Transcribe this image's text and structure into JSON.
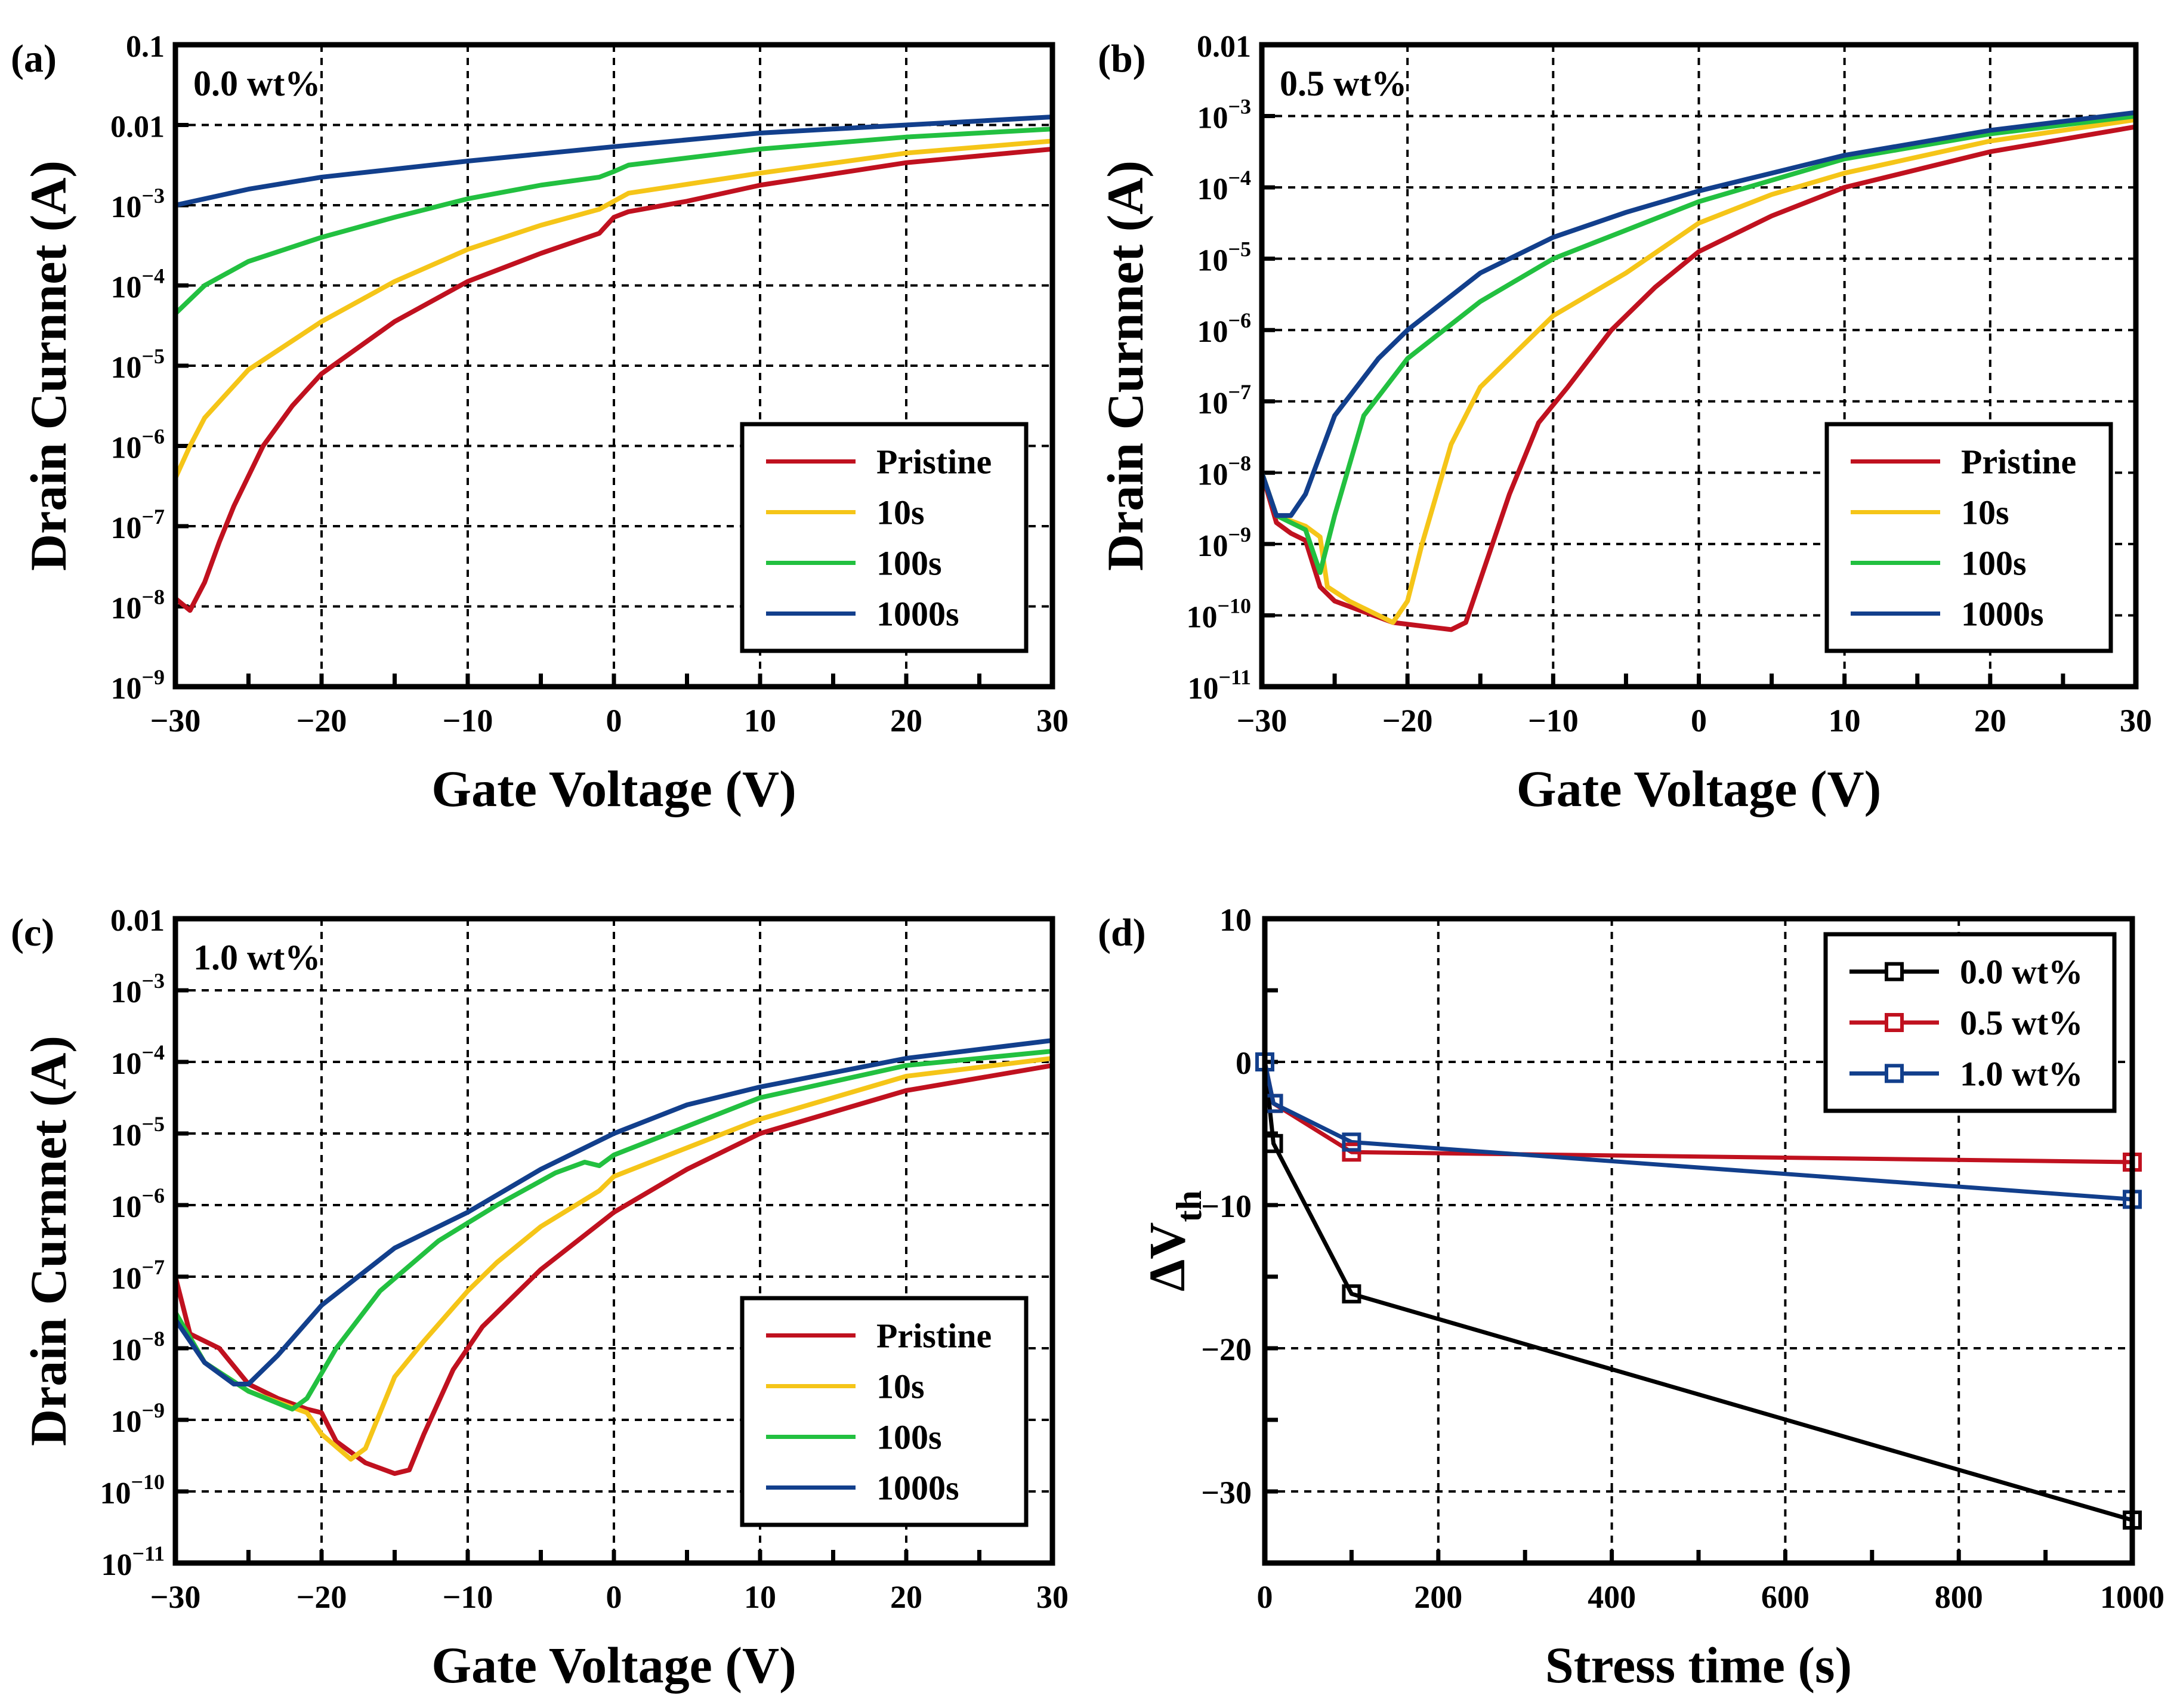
{
  "chart_data": [
    {
      "id": "a",
      "panel_label": "(a)",
      "type": "line",
      "annotation": "0.0 wt%",
      "xlabel": "Gate Voltage (V)",
      "ylabel": "Drain Curnnet (A)",
      "yscale": "log",
      "xlim": [
        -30,
        30
      ],
      "ylim_log10": [
        -9,
        -1
      ],
      "xticks": [
        "−30",
        "−20",
        "−10",
        "0",
        "10",
        "20",
        "30"
      ],
      "yticks": [
        {
          "m": "10",
          "e": "-9"
        },
        {
          "m": "10",
          "e": "-8"
        },
        {
          "m": "10",
          "e": "-7"
        },
        {
          "m": "10",
          "e": "-6"
        },
        {
          "m": "10",
          "e": "-5"
        },
        {
          "m": "10",
          "e": "-4"
        },
        {
          "m": "10",
          "e": "-3"
        },
        {
          "m": "0.01",
          "e": ""
        },
        {
          "m": "0.1",
          "e": ""
        }
      ],
      "legend": "bottom-right",
      "grid": true,
      "series": [
        {
          "name": "Pristine",
          "color": "#c0111f",
          "x_log10y": [
            [
              -30,
              -7.9
            ],
            [
              -29,
              -8.05
            ],
            [
              -28,
              -7.7
            ],
            [
              -27,
              -7.2
            ],
            [
              -26,
              -6.75
            ],
            [
              -24,
              -6.0
            ],
            [
              -22,
              -5.5
            ],
            [
              -20,
              -5.1
            ],
            [
              -15,
              -4.45
            ],
            [
              -10,
              -3.95
            ],
            [
              -5,
              -3.6
            ],
            [
              -1,
              -3.35
            ],
            [
              0,
              -3.15
            ],
            [
              1,
              -3.08
            ],
            [
              5,
              -2.95
            ],
            [
              10,
              -2.75
            ],
            [
              20,
              -2.47
            ],
            [
              30,
              -2.3
            ]
          ]
        },
        {
          "name": "10s",
          "color": "#f5c518",
          "x_log10y": [
            [
              -30,
              -6.4
            ],
            [
              -29,
              -6.0
            ],
            [
              -28,
              -5.65
            ],
            [
              -25,
              -5.05
            ],
            [
              -20,
              -4.45
            ],
            [
              -15,
              -3.95
            ],
            [
              -10,
              -3.55
            ],
            [
              -5,
              -3.25
            ],
            [
              -1,
              -3.05
            ],
            [
              0,
              -2.95
            ],
            [
              1,
              -2.85
            ],
            [
              10,
              -2.6
            ],
            [
              20,
              -2.35
            ],
            [
              30,
              -2.2
            ]
          ]
        },
        {
          "name": "100s",
          "color": "#22c040",
          "x_log10y": [
            [
              -30,
              -4.35
            ],
            [
              -28,
              -4.0
            ],
            [
              -25,
              -3.7
            ],
            [
              -20,
              -3.4
            ],
            [
              -15,
              -3.15
            ],
            [
              -10,
              -2.92
            ],
            [
              -5,
              -2.75
            ],
            [
              -1,
              -2.65
            ],
            [
              0,
              -2.58
            ],
            [
              1,
              -2.5
            ],
            [
              10,
              -2.3
            ],
            [
              20,
              -2.15
            ],
            [
              30,
              -2.05
            ]
          ]
        },
        {
          "name": "1000s",
          "color": "#123f8c",
          "x_log10y": [
            [
              -30,
              -3.0
            ],
            [
              -25,
              -2.8
            ],
            [
              -20,
              -2.65
            ],
            [
              -10,
              -2.45
            ],
            [
              0,
              -2.27
            ],
            [
              10,
              -2.1
            ],
            [
              20,
              -2.0
            ],
            [
              30,
              -1.9
            ]
          ]
        }
      ]
    },
    {
      "id": "b",
      "panel_label": "(b)",
      "type": "line",
      "annotation": "0.5 wt%",
      "xlabel": "Gate Voltage (V)",
      "ylabel": "Drain Curnnet (A)",
      "yscale": "log",
      "xlim": [
        -30,
        30
      ],
      "ylim_log10": [
        -11,
        -2
      ],
      "xticks": [
        "−30",
        "−20",
        "−10",
        "0",
        "10",
        "20",
        "30"
      ],
      "yticks": [
        {
          "m": "10",
          "e": "-11"
        },
        {
          "m": "10",
          "e": "-10"
        },
        {
          "m": "10",
          "e": "-9"
        },
        {
          "m": "10",
          "e": "-8"
        },
        {
          "m": "10",
          "e": "-7"
        },
        {
          "m": "10",
          "e": "-6"
        },
        {
          "m": "10",
          "e": "-5"
        },
        {
          "m": "10",
          "e": "-4"
        },
        {
          "m": "10",
          "e": "-3"
        },
        {
          "m": "0.01",
          "e": ""
        }
      ],
      "legend": "bottom-right",
      "grid": true,
      "series": [
        {
          "name": "Pristine",
          "color": "#c0111f",
          "x_log10y": [
            [
              -30,
              -8.0
            ],
            [
              -29,
              -8.7
            ],
            [
              -28,
              -8.85
            ],
            [
              -27,
              -8.95
            ],
            [
              -26,
              -9.6
            ],
            [
              -25,
              -9.8
            ],
            [
              -23,
              -9.95
            ],
            [
              -21,
              -10.1
            ],
            [
              -19,
              -10.15
            ],
            [
              -17,
              -10.2
            ],
            [
              -16,
              -10.1
            ],
            [
              -15,
              -9.5
            ],
            [
              -13,
              -8.3
            ],
            [
              -11,
              -7.3
            ],
            [
              -9,
              -6.8
            ],
            [
              -6,
              -6.0
            ],
            [
              -3,
              -5.4
            ],
            [
              0,
              -4.9
            ],
            [
              5,
              -4.4
            ],
            [
              10,
              -4.0
            ],
            [
              20,
              -3.5
            ],
            [
              30,
              -3.15
            ]
          ]
        },
        {
          "name": "10s",
          "color": "#f5c518",
          "x_log10y": [
            [
              -30,
              -8.0
            ],
            [
              -29,
              -8.6
            ],
            [
              -27,
              -8.75
            ],
            [
              -26,
              -8.9
            ],
            [
              -25.5,
              -9.6
            ],
            [
              -24,
              -9.8
            ],
            [
              -22,
              -10.0
            ],
            [
              -21,
              -10.1
            ],
            [
              -20,
              -9.8
            ],
            [
              -19,
              -9.0
            ],
            [
              -17,
              -7.6
            ],
            [
              -15,
              -6.8
            ],
            [
              -12,
              -6.2
            ],
            [
              -10,
              -5.8
            ],
            [
              -5,
              -5.2
            ],
            [
              0,
              -4.5
            ],
            [
              5,
              -4.1
            ],
            [
              10,
              -3.8
            ],
            [
              20,
              -3.35
            ],
            [
              30,
              -3.05
            ]
          ]
        },
        {
          "name": "100s",
          "color": "#22c040",
          "x_log10y": [
            [
              -30,
              -8.0
            ],
            [
              -29,
              -8.6
            ],
            [
              -27,
              -8.8
            ],
            [
              -26,
              -9.4
            ],
            [
              -25,
              -8.6
            ],
            [
              -23,
              -7.2
            ],
            [
              -20,
              -6.4
            ],
            [
              -15,
              -5.6
            ],
            [
              -10,
              -5.0
            ],
            [
              -5,
              -4.6
            ],
            [
              0,
              -4.2
            ],
            [
              5,
              -3.9
            ],
            [
              10,
              -3.6
            ],
            [
              20,
              -3.25
            ],
            [
              30,
              -3.0
            ]
          ]
        },
        {
          "name": "1000s",
          "color": "#123f8c",
          "x_log10y": [
            [
              -30,
              -8.0
            ],
            [
              -29,
              -8.6
            ],
            [
              -28,
              -8.6
            ],
            [
              -27,
              -8.3
            ],
            [
              -25,
              -7.2
            ],
            [
              -22,
              -6.4
            ],
            [
              -20,
              -6.0
            ],
            [
              -15,
              -5.2
            ],
            [
              -10,
              -4.7
            ],
            [
              -5,
              -4.35
            ],
            [
              0,
              -4.05
            ],
            [
              5,
              -3.8
            ],
            [
              10,
              -3.55
            ],
            [
              20,
              -3.2
            ],
            [
              30,
              -2.95
            ]
          ]
        }
      ]
    },
    {
      "id": "c",
      "panel_label": "(c)",
      "type": "line",
      "annotation": "1.0 wt%",
      "xlabel": "Gate Voltage (V)",
      "ylabel": "Drain Curnnet (A)",
      "yscale": "log",
      "xlim": [
        -30,
        30
      ],
      "ylim_log10": [
        -11,
        -2
      ],
      "xticks": [
        "−30",
        "−20",
        "−10",
        "0",
        "10",
        "20",
        "30"
      ],
      "yticks": [
        {
          "m": "10",
          "e": "-11"
        },
        {
          "m": "10",
          "e": "-10"
        },
        {
          "m": "10",
          "e": "-9"
        },
        {
          "m": "10",
          "e": "-8"
        },
        {
          "m": "10",
          "e": "-7"
        },
        {
          "m": "10",
          "e": "-6"
        },
        {
          "m": "10",
          "e": "-5"
        },
        {
          "m": "10",
          "e": "-4"
        },
        {
          "m": "10",
          "e": "-3"
        },
        {
          "m": "0.01",
          "e": ""
        }
      ],
      "legend": "bottom-right",
      "grid": true,
      "series": [
        {
          "name": "Pristine",
          "color": "#c0111f",
          "x_log10y": [
            [
              -30,
              -7.0
            ],
            [
              -29,
              -7.8
            ],
            [
              -27,
              -8.0
            ],
            [
              -25,
              -8.5
            ],
            [
              -23,
              -8.7
            ],
            [
              -21,
              -8.85
            ],
            [
              -20,
              -8.9
            ],
            [
              -19,
              -9.3
            ],
            [
              -17,
              -9.6
            ],
            [
              -15,
              -9.75
            ],
            [
              -14,
              -9.7
            ],
            [
              -13,
              -9.2
            ],
            [
              -11,
              -8.3
            ],
            [
              -9,
              -7.7
            ],
            [
              -5,
              -6.9
            ],
            [
              0,
              -6.1
            ],
            [
              5,
              -5.5
            ],
            [
              10,
              -5.0
            ],
            [
              20,
              -4.4
            ],
            [
              30,
              -4.05
            ]
          ]
        },
        {
          "name": "10s",
          "color": "#f5c518",
          "x_log10y": [
            [
              -30,
              -7.5
            ],
            [
              -28,
              -8.2
            ],
            [
              -25,
              -8.6
            ],
            [
              -21,
              -8.9
            ],
            [
              -20,
              -9.2
            ],
            [
              -18,
              -9.55
            ],
            [
              -17,
              -9.4
            ],
            [
              -15,
              -8.4
            ],
            [
              -13,
              -7.9
            ],
            [
              -10,
              -7.2
            ],
            [
              -8,
              -6.8
            ],
            [
              -5,
              -6.3
            ],
            [
              -1,
              -5.8
            ],
            [
              0,
              -5.6
            ],
            [
              5,
              -5.2
            ],
            [
              10,
              -4.8
            ],
            [
              20,
              -4.2
            ],
            [
              30,
              -3.95
            ]
          ]
        },
        {
          "name": "100s",
          "color": "#22c040",
          "x_log10y": [
            [
              -30,
              -7.5
            ],
            [
              -28,
              -8.2
            ],
            [
              -25,
              -8.6
            ],
            [
              -22,
              -8.85
            ],
            [
              -21,
              -8.7
            ],
            [
              -19,
              -8.0
            ],
            [
              -16,
              -7.2
            ],
            [
              -12,
              -6.5
            ],
            [
              -8,
              -6.0
            ],
            [
              -4,
              -5.55
            ],
            [
              -2,
              -5.4
            ],
            [
              -1,
              -5.45
            ],
            [
              0,
              -5.3
            ],
            [
              5,
              -4.9
            ],
            [
              10,
              -4.5
            ],
            [
              20,
              -4.05
            ],
            [
              30,
              -3.85
            ]
          ]
        },
        {
          "name": "1000s",
          "color": "#123f8c",
          "x_log10y": [
            [
              -30,
              -7.6
            ],
            [
              -28,
              -8.2
            ],
            [
              -26,
              -8.5
            ],
            [
              -25,
              -8.5
            ],
            [
              -23,
              -8.1
            ],
            [
              -20,
              -7.4
            ],
            [
              -15,
              -6.6
            ],
            [
              -10,
              -6.1
            ],
            [
              -5,
              -5.5
            ],
            [
              0,
              -5.0
            ],
            [
              5,
              -4.6
            ],
            [
              10,
              -4.35
            ],
            [
              20,
              -3.95
            ],
            [
              30,
              -3.7
            ]
          ]
        }
      ]
    },
    {
      "id": "d",
      "panel_label": "(d)",
      "type": "line",
      "annotation": "",
      "xlabel": "Stress time (s)",
      "ylabel": "ΔV",
      "ylabel_sub": "th",
      "yscale": "linear",
      "xlim": [
        0,
        1000
      ],
      "ylim": [
        -35,
        10
      ],
      "xticks": [
        "0",
        "200",
        "400",
        "600",
        "800",
        "1000"
      ],
      "yticks": [
        "−30",
        "−20",
        "−10",
        "0",
        "10"
      ],
      "legend": "top-right",
      "grid": true,
      "markers": "open-square",
      "series": [
        {
          "name": "0.0 wt%",
          "color": "#000000",
          "x": [
            0,
            10,
            100,
            1000
          ],
          "y": [
            0,
            -5.7,
            -16.2,
            -32.0
          ]
        },
        {
          "name": "0.5 wt%",
          "color": "#c0111f",
          "x": [
            0,
            10,
            100,
            1000
          ],
          "y": [
            0,
            -2.9,
            -6.3,
            -7.0
          ]
        },
        {
          "name": "1.0 wt%",
          "color": "#123f8c",
          "x": [
            0,
            10,
            100,
            1000
          ],
          "y": [
            0,
            -2.9,
            -5.6,
            -9.6
          ]
        }
      ]
    }
  ]
}
